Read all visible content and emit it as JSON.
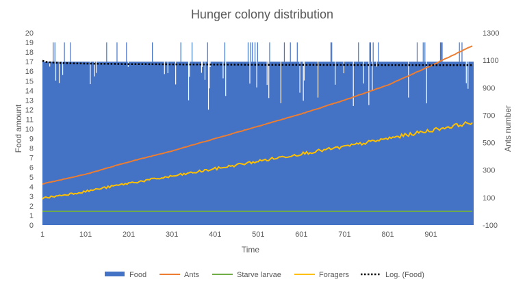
{
  "chart_data": {
    "type": "bar",
    "title": "Hunger colony distribution",
    "xlabel": "Time",
    "ylabel": "Food amount",
    "y2label": "Ants number",
    "x_range": [
      1,
      1000
    ],
    "ylim": [
      0,
      20
    ],
    "y2lim": [
      -100,
      1300
    ],
    "x_ticks": [
      "1",
      "101",
      "201",
      "301",
      "401",
      "501",
      "601",
      "701",
      "801",
      "901"
    ],
    "y_ticks": [
      "0",
      "1",
      "2",
      "3",
      "4",
      "5",
      "6",
      "7",
      "8",
      "9",
      "10",
      "11",
      "12",
      "13",
      "14",
      "15",
      "16",
      "17",
      "18",
      "19",
      "20"
    ],
    "y2_ticks": [
      "-100",
      "100",
      "300",
      "500",
      "700",
      "900",
      "1100",
      "1300"
    ],
    "grid": false,
    "legend_position": "bottom",
    "series": [
      {
        "name": "Food",
        "type": "bar",
        "axis": "left",
        "color": "#4472C4",
        "typical_value": 17,
        "upper_value": 19,
        "lower_dip_range": [
          12,
          16.5
        ]
      },
      {
        "name": "Ants",
        "type": "line",
        "axis": "right",
        "color": "#ED7D31",
        "x": [
          1,
          101,
          201,
          301,
          401,
          501,
          601,
          701,
          801,
          901,
          1000
        ],
        "values": [
          200,
          270,
          360,
          440,
          530,
          620,
          710,
          810,
          920,
          1060,
          1210
        ]
      },
      {
        "name": "Starve larvae",
        "type": "line",
        "axis": "right",
        "color": "#70AD47",
        "x": [
          1,
          1000
        ],
        "values": [
          0,
          0
        ]
      },
      {
        "name": "Foragers",
        "type": "line",
        "axis": "right",
        "color": "#FFC000",
        "x": [
          1,
          101,
          201,
          301,
          401,
          501,
          601,
          701,
          801,
          901,
          1000
        ],
        "values": [
          95,
          145,
          205,
          255,
          310,
          365,
          420,
          470,
          530,
          590,
          650
        ]
      },
      {
        "name": "Log. (Food)",
        "type": "trendline",
        "axis": "left",
        "color": "#000000",
        "x": [
          1,
          11,
          51,
          101,
          201,
          301,
          401,
          501,
          601,
          701,
          801,
          901,
          1000
        ],
        "values": [
          17.1,
          16.95,
          16.85,
          16.8,
          16.75,
          16.72,
          16.7,
          16.68,
          16.67,
          16.66,
          16.65,
          16.64,
          16.63
        ]
      }
    ]
  }
}
